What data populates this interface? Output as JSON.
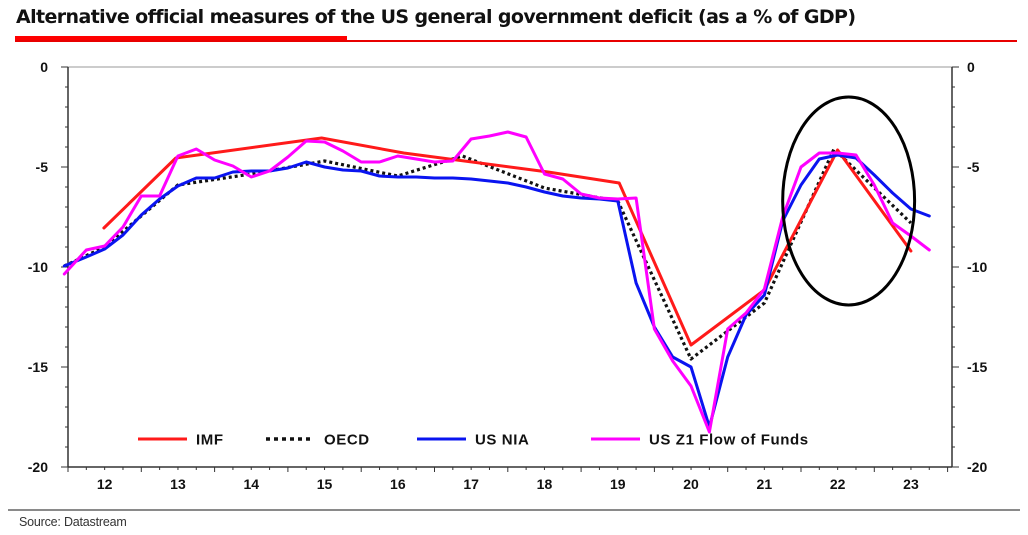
{
  "header": {
    "title": "Alternative official measures of the US general government deficit (as a % of GDP)"
  },
  "footer": {
    "source": "Source: Datastream"
  },
  "chart_data": {
    "type": "line",
    "title": "Alternative official measures of the US general government deficit (as a % of GDP)",
    "xlabel": "",
    "ylabel": "",
    "xlim": [
      12,
      23.85
    ],
    "ylim": [
      -20,
      0
    ],
    "x_tick_labels": [
      "12",
      "13",
      "14",
      "15",
      "16",
      "17",
      "18",
      "19",
      "20",
      "21",
      "22",
      "23"
    ],
    "y_tick_labels_left": [
      "0",
      "-5",
      "-10",
      "-15",
      "-20"
    ],
    "y_tick_labels_right": [
      "0",
      "-5",
      "-10",
      "-15",
      "-20"
    ],
    "y_ticks": [
      0,
      -5,
      -10,
      -15,
      -20
    ],
    "grid": false,
    "legend_position": "bottom-center",
    "annotations": [
      {
        "type": "ellipse",
        "description": "highlights 2022-2023 divergence",
        "x_center": 22.65,
        "y_center": -6.7,
        "x_radius": 0.9,
        "y_radius": 5.2
      }
    ],
    "series": [
      {
        "name": "IMF",
        "color": "#ff1a1a",
        "style": "solid",
        "points": [
          [
            12.49,
            -8.05
          ],
          [
            13.47,
            -4.55
          ],
          [
            15.46,
            -3.55
          ],
          [
            16.58,
            -4.3
          ],
          [
            18.55,
            -5.25
          ],
          [
            19.52,
            -5.8
          ],
          [
            20.5,
            -13.9
          ],
          [
            21.5,
            -11.15
          ],
          [
            22.5,
            -4.15
          ],
          [
            23.5,
            -9.2
          ]
        ]
      },
      {
        "name": "OECD",
        "color": "#111111",
        "style": "dotted",
        "points": [
          [
            11.95,
            -9.95
          ],
          [
            12.5,
            -9.0
          ],
          [
            12.95,
            -7.6
          ],
          [
            13.5,
            -5.9
          ],
          [
            14.5,
            -5.35
          ],
          [
            15.5,
            -4.7
          ],
          [
            16.5,
            -5.45
          ],
          [
            17.38,
            -4.45
          ],
          [
            18.5,
            -6.05
          ],
          [
            19.5,
            -6.7
          ],
          [
            20.5,
            -14.6
          ],
          [
            21.5,
            -11.8
          ],
          [
            22.45,
            -4.1
          ],
          [
            23.5,
            -7.8
          ]
        ]
      },
      {
        "name": "US NIA",
        "color": "#0a14f0",
        "style": "solid",
        "points": [
          [
            11.95,
            -9.95
          ],
          [
            12.25,
            -9.5
          ],
          [
            12.5,
            -9.1
          ],
          [
            12.75,
            -8.4
          ],
          [
            13.0,
            -7.4
          ],
          [
            13.25,
            -6.6
          ],
          [
            13.5,
            -5.95
          ],
          [
            13.75,
            -5.55
          ],
          [
            14.0,
            -5.55
          ],
          [
            14.25,
            -5.25
          ],
          [
            14.5,
            -5.2
          ],
          [
            14.75,
            -5.2
          ],
          [
            15.0,
            -5.05
          ],
          [
            15.25,
            -4.75
          ],
          [
            15.5,
            -5.0
          ],
          [
            15.75,
            -5.15
          ],
          [
            16.0,
            -5.2
          ],
          [
            16.25,
            -5.45
          ],
          [
            16.5,
            -5.5
          ],
          [
            16.75,
            -5.5
          ],
          [
            17.0,
            -5.55
          ],
          [
            17.25,
            -5.55
          ],
          [
            17.5,
            -5.6
          ],
          [
            17.75,
            -5.7
          ],
          [
            18.0,
            -5.8
          ],
          [
            18.25,
            -6.0
          ],
          [
            18.5,
            -6.25
          ],
          [
            18.75,
            -6.45
          ],
          [
            19.0,
            -6.55
          ],
          [
            19.25,
            -6.6
          ],
          [
            19.5,
            -6.7
          ],
          [
            19.75,
            -10.8
          ],
          [
            20.0,
            -13.0
          ],
          [
            20.25,
            -14.5
          ],
          [
            20.5,
            -15.0
          ],
          [
            20.75,
            -18.0
          ],
          [
            21.0,
            -14.5
          ],
          [
            21.25,
            -12.4
          ],
          [
            21.5,
            -11.4
          ],
          [
            21.75,
            -7.7
          ],
          [
            22.0,
            -5.9
          ],
          [
            22.25,
            -4.6
          ],
          [
            22.5,
            -4.4
          ],
          [
            22.75,
            -4.55
          ],
          [
            23.0,
            -5.4
          ],
          [
            23.25,
            -6.3
          ],
          [
            23.5,
            -7.1
          ],
          [
            23.75,
            -7.45
          ]
        ]
      },
      {
        "name": "US Z1 Flow of Funds",
        "color": "#ff00ff",
        "style": "solid",
        "points": [
          [
            11.95,
            -10.35
          ],
          [
            12.25,
            -9.15
          ],
          [
            12.5,
            -8.95
          ],
          [
            12.75,
            -8.0
          ],
          [
            13.0,
            -6.45
          ],
          [
            13.25,
            -6.45
          ],
          [
            13.5,
            -4.45
          ],
          [
            13.75,
            -4.1
          ],
          [
            14.0,
            -4.65
          ],
          [
            14.25,
            -4.95
          ],
          [
            14.5,
            -5.5
          ],
          [
            14.75,
            -5.2
          ],
          [
            15.0,
            -4.5
          ],
          [
            15.25,
            -3.7
          ],
          [
            15.5,
            -3.75
          ],
          [
            15.75,
            -4.2
          ],
          [
            16.0,
            -4.75
          ],
          [
            16.25,
            -4.75
          ],
          [
            16.5,
            -4.45
          ],
          [
            16.75,
            -4.6
          ],
          [
            17.0,
            -4.75
          ],
          [
            17.25,
            -4.7
          ],
          [
            17.5,
            -3.6
          ],
          [
            17.75,
            -3.45
          ],
          [
            18.0,
            -3.25
          ],
          [
            18.25,
            -3.5
          ],
          [
            18.5,
            -5.35
          ],
          [
            18.75,
            -5.6
          ],
          [
            19.0,
            -6.35
          ],
          [
            19.25,
            -6.55
          ],
          [
            19.5,
            -6.6
          ],
          [
            19.75,
            -6.55
          ],
          [
            20.0,
            -13.1
          ],
          [
            20.25,
            -14.7
          ],
          [
            20.5,
            -15.95
          ],
          [
            20.75,
            -18.25
          ],
          [
            21.0,
            -13.1
          ],
          [
            21.25,
            -12.3
          ],
          [
            21.5,
            -11.1
          ],
          [
            21.75,
            -7.5
          ],
          [
            22.0,
            -5.0
          ],
          [
            22.25,
            -4.3
          ],
          [
            22.5,
            -4.3
          ],
          [
            22.75,
            -4.4
          ],
          [
            23.0,
            -5.9
          ],
          [
            23.25,
            -7.8
          ],
          [
            23.5,
            -8.45
          ],
          [
            23.75,
            -9.15
          ]
        ]
      }
    ]
  }
}
